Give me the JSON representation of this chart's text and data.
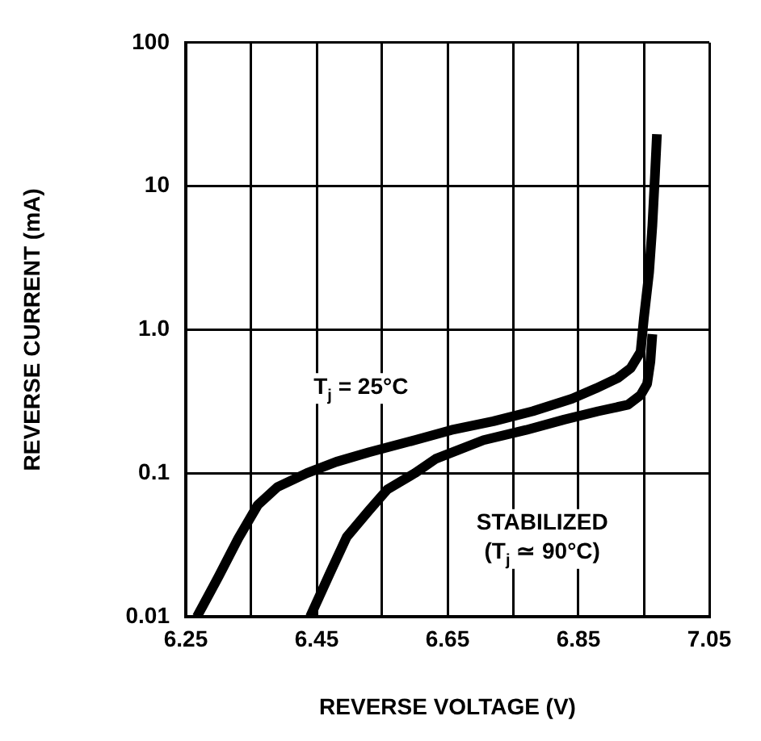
{
  "chart_data": {
    "type": "line",
    "xlabel": "REVERSE VOLTAGE (V)",
    "ylabel": "REVERSE CURRENT (mA)",
    "log": "y",
    "grid": true,
    "legend": false,
    "marker": "none",
    "xlim": [
      6.25,
      7.05
    ],
    "ylim": [
      0.01,
      100
    ],
    "xticks": [
      6.25,
      {
        "value": 6.35,
        "label": null
      },
      6.45,
      {
        "value": 6.55,
        "label": null
      },
      6.65,
      {
        "value": 6.75,
        "label": null
      },
      6.85,
      {
        "value": 6.95,
        "label": null
      },
      7.05
    ],
    "yticks": [
      0.01,
      0.1,
      {
        "value": 1,
        "label": "1.0"
      },
      10,
      100
    ],
    "series": [
      {
        "name": "T$_{j}$ = 25°C",
        "color": "#000000",
        "x": [
          6.267,
          6.3,
          6.33,
          6.36,
          6.39,
          6.435,
          6.48,
          6.53,
          6.6,
          6.656,
          6.72,
          6.78,
          6.84,
          6.877,
          6.91,
          6.93,
          6.945,
          6.95,
          6.958,
          6.963,
          6.967,
          6.97
        ],
        "values": [
          0.01,
          0.019,
          0.035,
          0.06,
          0.08,
          0.1,
          0.12,
          0.14,
          0.17,
          0.2,
          0.23,
          0.27,
          0.33,
          0.39,
          0.46,
          0.54,
          0.7,
          1.2,
          2.5,
          5.3,
          12,
          23
        ]
      },
      {
        "name": "STABILIZED (T$_{j}$ ≃ 90°C)",
        "color": "#000000",
        "x": [
          6.44,
          6.47,
          6.496,
          6.53,
          6.558,
          6.6,
          6.632,
          6.705,
          6.77,
          6.828,
          6.88,
          6.926,
          6.945,
          6.955,
          6.96,
          6.963
        ],
        "values": [
          0.01,
          0.02,
          0.036,
          0.055,
          0.077,
          0.1,
          0.126,
          0.17,
          0.2,
          0.236,
          0.27,
          0.3,
          0.35,
          0.42,
          0.6,
          0.93
        ]
      }
    ]
  }
}
